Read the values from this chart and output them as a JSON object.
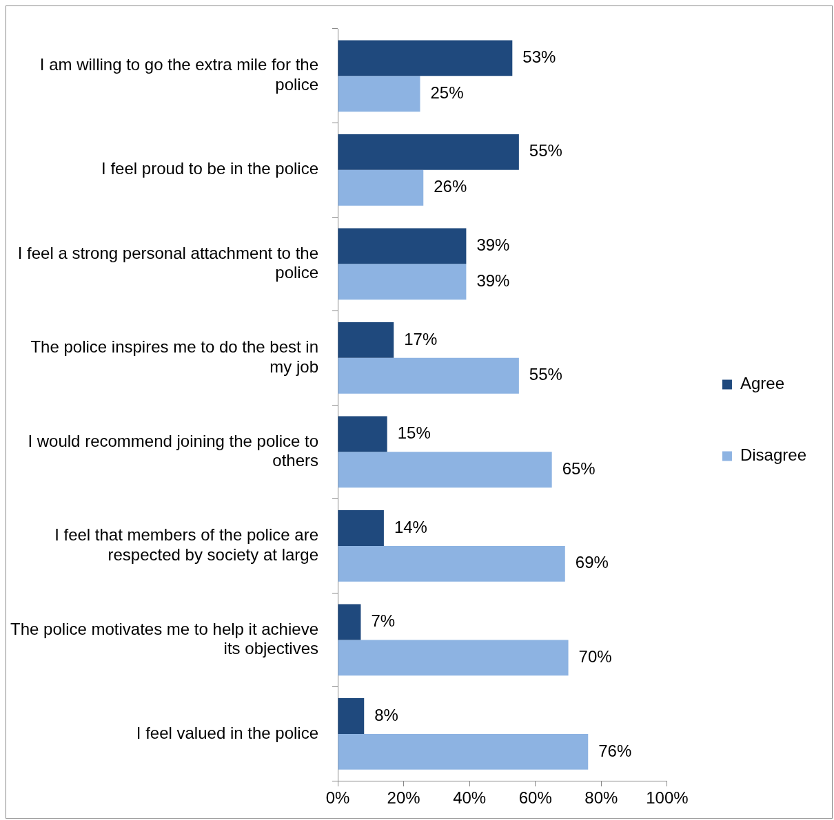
{
  "chart_data": {
    "type": "bar",
    "orientation": "horizontal",
    "categories": [
      "I am willing to go the extra mile for the police",
      "I feel proud to be in the police",
      "I feel a strong personal attachment to the police",
      "The police inspires me to do the best in my job",
      "I would recommend joining the police to others",
      "I feel that members of the police are respected by society at large",
      "The police motivates me to help it achieve its objectives",
      "I feel valued in the police"
    ],
    "series": [
      {
        "name": "Agree",
        "color": "#1f497d",
        "values": [
          53,
          55,
          39,
          17,
          15,
          14,
          7,
          8
        ],
        "value_labels": [
          "53%",
          "55%",
          "39%",
          "17%",
          "15%",
          "14%",
          "7%",
          "8%"
        ]
      },
      {
        "name": "Disagree",
        "color": "#8db3e2",
        "values": [
          25,
          26,
          39,
          55,
          65,
          69,
          70,
          76
        ],
        "value_labels": [
          "25%",
          "26%",
          "39%",
          "55%",
          "65%",
          "69%",
          "70%",
          "76%"
        ]
      }
    ],
    "xlim": [
      0,
      100
    ],
    "xticks": [
      {
        "value": 0,
        "label": "0%"
      },
      {
        "value": 20,
        "label": "20%"
      },
      {
        "value": 40,
        "label": "40%"
      },
      {
        "value": 60,
        "label": "60%"
      },
      {
        "value": 80,
        "label": "80%"
      },
      {
        "value": 100,
        "label": "100%"
      }
    ],
    "grid": false,
    "legend": "right"
  }
}
